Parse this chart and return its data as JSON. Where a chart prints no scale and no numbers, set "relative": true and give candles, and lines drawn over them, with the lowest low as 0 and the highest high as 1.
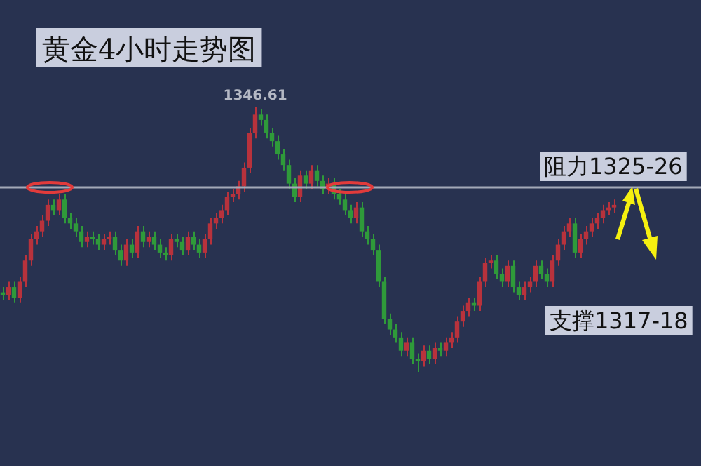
{
  "chart_data": {
    "type": "candlestick",
    "title": "黄金4小时走势图",
    "relative": true,
    "categories": [
      null,
      null,
      null,
      null,
      null,
      null,
      null,
      null,
      null,
      null,
      null,
      null,
      null,
      null,
      null,
      null,
      null,
      null,
      null,
      null,
      null,
      null,
      null,
      null,
      null,
      null,
      null,
      null,
      null,
      null,
      null,
      null,
      null,
      null,
      null,
      null,
      null,
      null,
      null,
      null,
      null,
      null,
      null,
      null,
      null,
      null,
      null,
      null,
      null,
      null,
      null,
      null,
      null,
      null,
      null,
      null,
      null,
      null,
      null,
      null,
      null,
      null,
      null,
      null,
      null,
      null,
      null,
      null,
      null,
      null,
      null,
      null,
      null,
      null,
      null,
      null,
      null,
      null,
      null,
      null,
      null,
      null,
      null,
      null,
      null,
      null,
      null,
      null,
      null,
      null,
      null,
      null,
      null,
      null,
      null,
      null,
      null,
      null,
      null,
      null,
      null,
      null,
      null,
      null,
      null,
      null,
      null,
      null,
      null,
      null
    ],
    "ohlc": [
      [
        0.3,
        0.32,
        0.27,
        0.29
      ],
      [
        0.29,
        0.34,
        0.27,
        0.32
      ],
      [
        0.32,
        0.34,
        0.26,
        0.28
      ],
      [
        0.28,
        0.36,
        0.26,
        0.34
      ],
      [
        0.34,
        0.44,
        0.32,
        0.42
      ],
      [
        0.42,
        0.52,
        0.4,
        0.5
      ],
      [
        0.5,
        0.55,
        0.48,
        0.53
      ],
      [
        0.53,
        0.59,
        0.51,
        0.57
      ],
      [
        0.57,
        0.65,
        0.55,
        0.63
      ],
      [
        0.63,
        0.65,
        0.59,
        0.61
      ],
      [
        0.61,
        0.67,
        0.59,
        0.65
      ],
      [
        0.65,
        0.67,
        0.56,
        0.58
      ],
      [
        0.58,
        0.6,
        0.54,
        0.56
      ],
      [
        0.56,
        0.58,
        0.51,
        0.53
      ],
      [
        0.53,
        0.55,
        0.47,
        0.49
      ],
      [
        0.49,
        0.53,
        0.47,
        0.51
      ],
      [
        0.51,
        0.53,
        0.48,
        0.5
      ],
      [
        0.5,
        0.52,
        0.46,
        0.48
      ],
      [
        0.48,
        0.52,
        0.46,
        0.5
      ],
      [
        0.5,
        0.53,
        0.48,
        0.51
      ],
      [
        0.51,
        0.53,
        0.44,
        0.46
      ],
      [
        0.46,
        0.48,
        0.4,
        0.42
      ],
      [
        0.42,
        0.5,
        0.4,
        0.48
      ],
      [
        0.48,
        0.5,
        0.43,
        0.45
      ],
      [
        0.45,
        0.55,
        0.43,
        0.53
      ],
      [
        0.53,
        0.55,
        0.47,
        0.49
      ],
      [
        0.49,
        0.53,
        0.47,
        0.51
      ],
      [
        0.51,
        0.53,
        0.46,
        0.48
      ],
      [
        0.48,
        0.5,
        0.43,
        0.45
      ],
      [
        0.45,
        0.47,
        0.42,
        0.44
      ],
      [
        0.44,
        0.52,
        0.42,
        0.5
      ],
      [
        0.5,
        0.52,
        0.47,
        0.49
      ],
      [
        0.49,
        0.51,
        0.44,
        0.46
      ],
      [
        0.46,
        0.53,
        0.44,
        0.51
      ],
      [
        0.51,
        0.53,
        0.46,
        0.48
      ],
      [
        0.48,
        0.5,
        0.43,
        0.45
      ],
      [
        0.45,
        0.52,
        0.43,
        0.5
      ],
      [
        0.5,
        0.58,
        0.48,
        0.56
      ],
      [
        0.56,
        0.6,
        0.54,
        0.58
      ],
      [
        0.58,
        0.63,
        0.56,
        0.61
      ],
      [
        0.61,
        0.68,
        0.59,
        0.66
      ],
      [
        0.66,
        0.69,
        0.64,
        0.67
      ],
      [
        0.67,
        0.72,
        0.65,
        0.7
      ],
      [
        0.7,
        0.79,
        0.68,
        0.77
      ],
      [
        0.77,
        0.92,
        0.75,
        0.9
      ],
      [
        0.9,
        1.0,
        0.88,
        0.97
      ],
      [
        0.97,
        0.99,
        0.93,
        0.95
      ],
      [
        0.95,
        0.97,
        0.88,
        0.9
      ],
      [
        0.9,
        0.92,
        0.85,
        0.87
      ],
      [
        0.87,
        0.89,
        0.8,
        0.82
      ],
      [
        0.82,
        0.84,
        0.76,
        0.78
      ],
      [
        0.78,
        0.8,
        0.69,
        0.71
      ],
      [
        0.71,
        0.73,
        0.64,
        0.66
      ],
      [
        0.66,
        0.76,
        0.64,
        0.74
      ],
      [
        0.74,
        0.76,
        0.69,
        0.71
      ],
      [
        0.71,
        0.78,
        0.69,
        0.76
      ],
      [
        0.76,
        0.78,
        0.7,
        0.72
      ],
      [
        0.72,
        0.74,
        0.67,
        0.69
      ],
      [
        0.69,
        0.73,
        0.67,
        0.71
      ],
      [
        0.71,
        0.73,
        0.65,
        0.67
      ],
      [
        0.67,
        0.69,
        0.63,
        0.65
      ],
      [
        0.65,
        0.67,
        0.59,
        0.61
      ],
      [
        0.61,
        0.63,
        0.56,
        0.58
      ],
      [
        0.58,
        0.64,
        0.56,
        0.62
      ],
      [
        0.62,
        0.64,
        0.51,
        0.53
      ],
      [
        0.53,
        0.55,
        0.48,
        0.5
      ],
      [
        0.5,
        0.52,
        0.44,
        0.46
      ],
      [
        0.46,
        0.48,
        0.32,
        0.34
      ],
      [
        0.34,
        0.36,
        0.18,
        0.2
      ],
      [
        0.2,
        0.22,
        0.14,
        0.16
      ],
      [
        0.16,
        0.18,
        0.11,
        0.13
      ],
      [
        0.13,
        0.15,
        0.06,
        0.08
      ],
      [
        0.08,
        0.13,
        0.06,
        0.11
      ],
      [
        0.11,
        0.13,
        0.03,
        0.05
      ],
      [
        0.05,
        0.07,
        0.0,
        0.04
      ],
      [
        0.04,
        0.1,
        0.02,
        0.08
      ],
      [
        0.08,
        0.1,
        0.03,
        0.05
      ],
      [
        0.05,
        0.11,
        0.03,
        0.09
      ],
      [
        0.09,
        0.11,
        0.06,
        0.08
      ],
      [
        0.08,
        0.13,
        0.06,
        0.11
      ],
      [
        0.11,
        0.15,
        0.09,
        0.13
      ],
      [
        0.13,
        0.21,
        0.11,
        0.19
      ],
      [
        0.19,
        0.25,
        0.17,
        0.23
      ],
      [
        0.23,
        0.28,
        0.21,
        0.26
      ],
      [
        0.26,
        0.28,
        0.23,
        0.25
      ],
      [
        0.25,
        0.36,
        0.23,
        0.34
      ],
      [
        0.34,
        0.43,
        0.32,
        0.41
      ],
      [
        0.41,
        0.44,
        0.39,
        0.42
      ],
      [
        0.42,
        0.44,
        0.35,
        0.37
      ],
      [
        0.37,
        0.39,
        0.32,
        0.34
      ],
      [
        0.34,
        0.42,
        0.32,
        0.4
      ],
      [
        0.4,
        0.42,
        0.3,
        0.32
      ],
      [
        0.32,
        0.34,
        0.27,
        0.29
      ],
      [
        0.29,
        0.34,
        0.27,
        0.32
      ],
      [
        0.32,
        0.36,
        0.3,
        0.34
      ],
      [
        0.34,
        0.42,
        0.32,
        0.4
      ],
      [
        0.4,
        0.42,
        0.35,
        0.37
      ],
      [
        0.37,
        0.39,
        0.32,
        0.34
      ],
      [
        0.34,
        0.44,
        0.32,
        0.42
      ],
      [
        0.42,
        0.5,
        0.4,
        0.48
      ],
      [
        0.48,
        0.55,
        0.46,
        0.53
      ],
      [
        0.53,
        0.58,
        0.51,
        0.56
      ],
      [
        0.56,
        0.58,
        0.43,
        0.45
      ],
      [
        0.45,
        0.52,
        0.43,
        0.5
      ],
      [
        0.5,
        0.55,
        0.48,
        0.53
      ],
      [
        0.53,
        0.58,
        0.51,
        0.56
      ],
      [
        0.56,
        0.6,
        0.54,
        0.58
      ],
      [
        0.58,
        0.63,
        0.56,
        0.61
      ],
      [
        0.61,
        0.64,
        0.59,
        0.62
      ],
      [
        0.62,
        0.65,
        0.6,
        0.63
      ]
    ],
    "colors": [
      "#2f9a3a",
      "#b8323c",
      "#2f9a3a",
      "#b8323c",
      "#b8323c",
      "#b8323c",
      "#b8323c",
      "#b8323c",
      "#b8323c",
      "#2f9a3a",
      "#b8323c",
      "#2f9a3a",
      "#2f9a3a",
      "#2f9a3a",
      "#2f9a3a",
      "#b8323c",
      "#2f9a3a",
      "#2f9a3a",
      "#b8323c",
      "#b8323c",
      "#2f9a3a",
      "#2f9a3a",
      "#b8323c",
      "#2f9a3a",
      "#b8323c",
      "#2f9a3a",
      "#b8323c",
      "#2f9a3a",
      "#2f9a3a",
      "#2f9a3a",
      "#b8323c",
      "#2f9a3a",
      "#2f9a3a",
      "#b8323c",
      "#2f9a3a",
      "#2f9a3a",
      "#b8323c",
      "#b8323c",
      "#b8323c",
      "#b8323c",
      "#b8323c",
      "#b8323c",
      "#b8323c",
      "#b8323c",
      "#b8323c",
      "#b8323c",
      "#2f9a3a",
      "#2f9a3a",
      "#2f9a3a",
      "#2f9a3a",
      "#2f9a3a",
      "#2f9a3a",
      "#2f9a3a",
      "#b8323c",
      "#2f9a3a",
      "#b8323c",
      "#2f9a3a",
      "#2f9a3a",
      "#b8323c",
      "#2f9a3a",
      "#2f9a3a",
      "#2f9a3a",
      "#2f9a3a",
      "#b8323c",
      "#2f9a3a",
      "#2f9a3a",
      "#2f9a3a",
      "#2f9a3a",
      "#2f9a3a",
      "#2f9a3a",
      "#2f9a3a",
      "#2f9a3a",
      "#b8323c",
      "#2f9a3a",
      "#2f9a3a",
      "#b8323c",
      "#2f9a3a",
      "#b8323c",
      "#2f9a3a",
      "#b8323c",
      "#b8323c",
      "#b8323c",
      "#b8323c",
      "#b8323c",
      "#2f9a3a",
      "#b8323c",
      "#b8323c",
      "#b8323c",
      "#2f9a3a",
      "#2f9a3a",
      "#b8323c",
      "#2f9a3a",
      "#2f9a3a",
      "#b8323c",
      "#b8323c",
      "#b8323c",
      "#2f9a3a",
      "#2f9a3a",
      "#b8323c",
      "#b8323c",
      "#b8323c",
      "#b8323c",
      "#2f9a3a",
      "#b8323c",
      "#b8323c",
      "#b8323c",
      "#b8323c",
      "#b8323c",
      "#b8323c",
      "#b8323c"
    ],
    "ref_lines": [
      {
        "axis": "y",
        "value": 0.7,
        "color": "#a4a9b8"
      }
    ],
    "annotations": [
      {
        "text": "1346.61",
        "y": 1.0
      },
      "阻力1325-26",
      "支撑1317-18"
    ],
    "legend": false
  }
}
